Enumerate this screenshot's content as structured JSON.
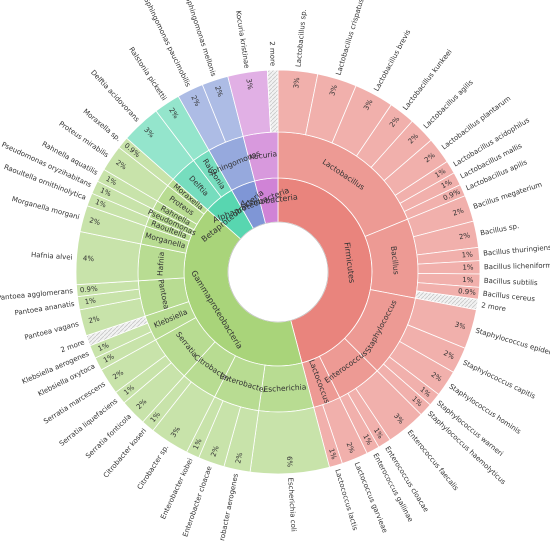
{
  "chart_data": {
    "type": "sunburst",
    "title": "",
    "colors": {
      "Firmicutes": "#e9847d",
      "Gammaproteobacteria": "#a9d47a",
      "Actinobacteria": "#d083d6",
      "Betaproteobacteria": "#58d6b0",
      "Alphaproteobacteria": "#7f96d6"
    },
    "tree": [
      {
        "name": "Firmicutes",
        "children": [
          {
            "name": "Lactobacillus",
            "children": [
              {
                "name": "Lactobacillus sp.",
                "pct": "3%",
                "value": 3
              },
              {
                "name": "Lactobacillus crispatus",
                "pct": "3%",
                "value": 3
              },
              {
                "name": "Lactobacillus brevis",
                "pct": "3%",
                "value": 3
              },
              {
                "name": "Lactobacillus kunkeei",
                "pct": "2%",
                "value": 2
              },
              {
                "name": "Lactobacillus agilis",
                "pct": "2%",
                "value": 2
              },
              {
                "name": "Lactobacillus plantarum",
                "pct": "2%",
                "value": 2
              },
              {
                "name": "Lactobacillus acidophilus",
                "pct": "1%",
                "value": 1
              },
              {
                "name": "Lactobacillus mallis",
                "pct": "1%",
                "value": 1
              },
              {
                "name": "Lactobacillus apilis",
                "pct": "0.9%",
                "value": 0.9
              }
            ]
          },
          {
            "name": "Bacillus",
            "children": [
              {
                "name": "Bacillus megaterium",
                "pct": "2%",
                "value": 2
              },
              {
                "name": "Bacillus sp.",
                "pct": "2%",
                "value": 2
              },
              {
                "name": "Bacillus thuringiensis",
                "pct": "1%",
                "value": 1
              },
              {
                "name": "Bacillus licheniformis",
                "pct": "1%",
                "value": 1
              },
              {
                "name": "Bacillus subtilis",
                "pct": "1%",
                "value": 1
              },
              {
                "name": "Bacillus cereus",
                "pct": "0.9%",
                "value": 0.9
              },
              {
                "name": "2 more",
                "pct": "",
                "value": 0.8,
                "more": true
              }
            ]
          },
          {
            "name": "Staphylococcus",
            "children": [
              {
                "name": "Staphylococcus epidermidis",
                "pct": "3%",
                "value": 3
              },
              {
                "name": "Staphylococcus capitis",
                "pct": "2%",
                "value": 2
              },
              {
                "name": "Staphylococcus hominis",
                "pct": "2%",
                "value": 2
              },
              {
                "name": "Staphylococcus warneri",
                "pct": "1%",
                "value": 1
              },
              {
                "name": "Staphylococcus haemolyticus",
                "pct": "1%",
                "value": 1
              }
            ]
          },
          {
            "name": "Enterococcus",
            "children": [
              {
                "name": "Enterococcus faecalis",
                "pct": "3%",
                "value": 3
              },
              {
                "name": "Enterococcus cloacae",
                "pct": "1%",
                "value": 1
              },
              {
                "name": "Enterococcus gallinae",
                "pct": "1%",
                "value": 1
              }
            ]
          },
          {
            "name": "Lactococcus",
            "children": [
              {
                "name": "Lactococcus garvieae",
                "pct": "2%",
                "value": 2
              },
              {
                "name": "Lactococcus lactis",
                "pct": "1%",
                "value": 1
              }
            ]
          }
        ]
      },
      {
        "name": "Gammaproteobacteria",
        "children": [
          {
            "name": "Escherichia",
            "children": [
              {
                "name": "Escherichia coli",
                "pct": "6%",
                "value": 6
              }
            ]
          },
          {
            "name": "Enterobacter",
            "children": [
              {
                "name": "Enterobacter aerogenes",
                "pct": "2%",
                "value": 2
              },
              {
                "name": "Enterobacter cloacae",
                "pct": "2%",
                "value": 2
              },
              {
                "name": "Enterobacter kobei",
                "pct": "1%",
                "value": 1
              }
            ]
          },
          {
            "name": "Citrobacter",
            "children": [
              {
                "name": "Citrobacter sp.",
                "pct": "3%",
                "value": 3
              },
              {
                "name": "Citrobacter koseri",
                "pct": "1%",
                "value": 1
              }
            ]
          },
          {
            "name": "Serratia",
            "children": [
              {
                "name": "Serratia fonticola",
                "pct": "2%",
                "value": 2
              },
              {
                "name": "Serratia liquefaciens",
                "pct": "1%",
                "value": 1
              },
              {
                "name": "Serratia marcescens",
                "pct": "2%",
                "value": 2
              }
            ]
          },
          {
            "name": "Klebsiella",
            "children": [
              {
                "name": "Klebsiella oxytoca",
                "pct": "1%",
                "value": 1
              },
              {
                "name": "Klebsiella aerogenes",
                "pct": "1%",
                "value": 1
              },
              {
                "name": "2 more",
                "pct": "",
                "value": 0.8,
                "more": true
              }
            ]
          },
          {
            "name": "Pantoea",
            "children": [
              {
                "name": "Pantoea vagans",
                "pct": "2%",
                "value": 2
              },
              {
                "name": "Pantoea ananatis",
                "pct": "1%",
                "value": 1
              },
              {
                "name": "Pantoea agglomerans",
                "pct": "0.9%",
                "value": 0.9
              }
            ]
          },
          {
            "name": "Hafnia",
            "children": [
              {
                "name": "Hafnia alvei",
                "pct": "4%",
                "value": 4
              }
            ]
          },
          {
            "name": "Morganella",
            "children": [
              {
                "name": "Morganella morgani",
                "pct": "2%",
                "value": 2
              }
            ]
          },
          {
            "name": "Raoultella",
            "children": [
              {
                "name": "Raoultella ornithinolytica",
                "pct": "1%",
                "value": 1
              }
            ]
          },
          {
            "name": "Pseudomonas",
            "children": [
              {
                "name": "Pseudomonas oryzihabitans",
                "pct": "1%",
                "value": 1
              }
            ]
          },
          {
            "name": "Rahnella",
            "children": [
              {
                "name": "Rahnella aquatilis",
                "pct": "1%",
                "value": 1
              }
            ]
          },
          {
            "name": "Proteus",
            "children": [
              {
                "name": "Proteus mirabilis",
                "pct": "2%",
                "value": 2
              }
            ]
          },
          {
            "name": "Moraxella",
            "children": [
              {
                "name": "Moraxella sp.",
                "pct": "0.9%",
                "value": 0.9
              }
            ]
          }
        ]
      },
      {
        "name": "Betaproteobacteria",
        "children": [
          {
            "name": "Delftia",
            "children": [
              {
                "name": "Delftia acidovorans",
                "pct": "3%",
                "value": 3
              }
            ]
          },
          {
            "name": "Ralstonia",
            "children": [
              {
                "name": "Ralstonia pickettii",
                "pct": "2%",
                "value": 2
              }
            ]
          }
        ]
      },
      {
        "name": "Alphaproteobacteria",
        "children": [
          {
            "name": "Sphingomonas",
            "children": [
              {
                "name": "Sphingomonas paucimobilis",
                "pct": "2%",
                "value": 2
              },
              {
                "name": "Sphingomonas mellonis",
                "pct": "2%",
                "value": 2
              }
            ]
          }
        ]
      },
      {
        "name": "Actinobacteria",
        "children": [
          {
            "name": "Kocuria",
            "children": [
              {
                "name": "Kocuria kristinae",
                "pct": "3%",
                "value": 3
              },
              {
                "name": "2 more",
                "pct": "",
                "value": 0.8,
                "more": true
              }
            ]
          }
        ]
      }
    ]
  }
}
